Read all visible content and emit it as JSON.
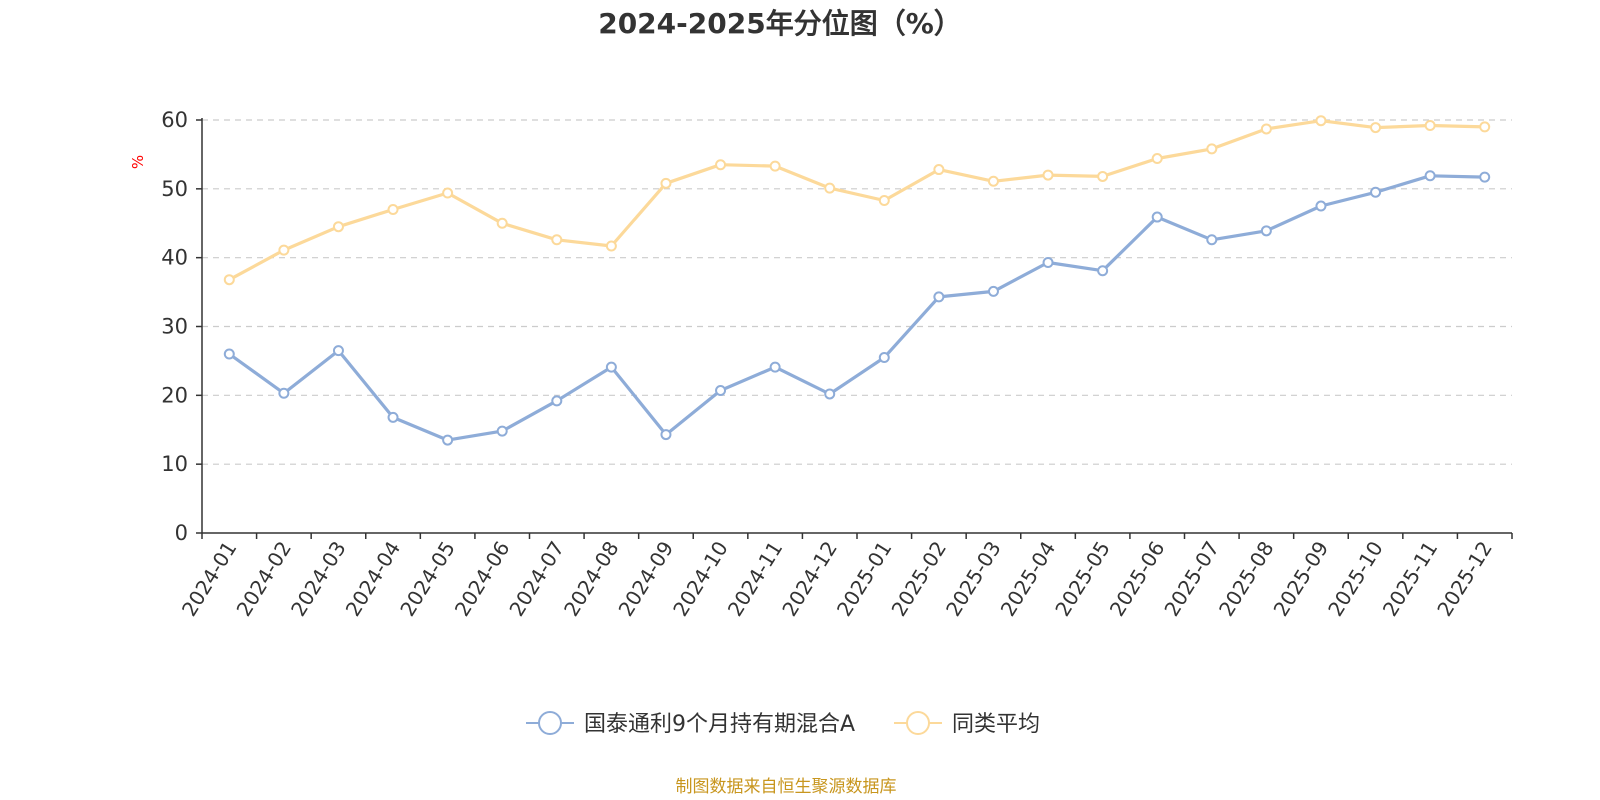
{
  "chart_data": {
    "type": "line",
    "title": "2024-2025年分位图（%）",
    "ylabel": "%",
    "xlabel": "",
    "ylim": [
      0,
      60
    ],
    "yticks": [
      0,
      10,
      20,
      30,
      40,
      50,
      60
    ],
    "grid": true,
    "legend_position": "bottom",
    "categories": [
      "2024-01",
      "2024-02",
      "2024-03",
      "2024-04",
      "2024-05",
      "2024-06",
      "2024-07",
      "2024-08",
      "2024-09",
      "2024-10",
      "2024-11",
      "2024-12",
      "2025-01",
      "2025-02",
      "2025-03",
      "2025-04",
      "2025-05",
      "2025-06",
      "2025-07",
      "2025-08",
      "2025-09",
      "2025-10",
      "2025-11",
      "2025-12"
    ],
    "series": [
      {
        "name": "国泰通利9个月持有期混合A",
        "color": "#8eacd8",
        "values": [
          26.0,
          20.3,
          26.5,
          16.8,
          13.5,
          14.8,
          19.2,
          24.1,
          14.3,
          20.7,
          24.1,
          20.2,
          25.5,
          34.3,
          35.1,
          39.3,
          38.1,
          45.9,
          42.6,
          43.9,
          47.5,
          49.5,
          51.9,
          51.7
        ]
      },
      {
        "name": "同类平均",
        "color": "#fcd99a",
        "values": [
          36.8,
          41.1,
          44.5,
          47.0,
          49.4,
          45.0,
          42.6,
          41.7,
          50.8,
          53.5,
          53.3,
          50.1,
          48.3,
          52.8,
          51.1,
          52.0,
          51.8,
          54.4,
          55.8,
          58.7,
          59.9,
          58.9,
          59.2,
          59.0
        ]
      }
    ]
  },
  "footer": {
    "source": "制图数据来自恒生聚源数据库",
    "source_color": "#c8961e"
  },
  "colors": {
    "axis": "#333333",
    "grid": "#cccccc",
    "ylabel": "#ff0000",
    "title": "#333333"
  }
}
